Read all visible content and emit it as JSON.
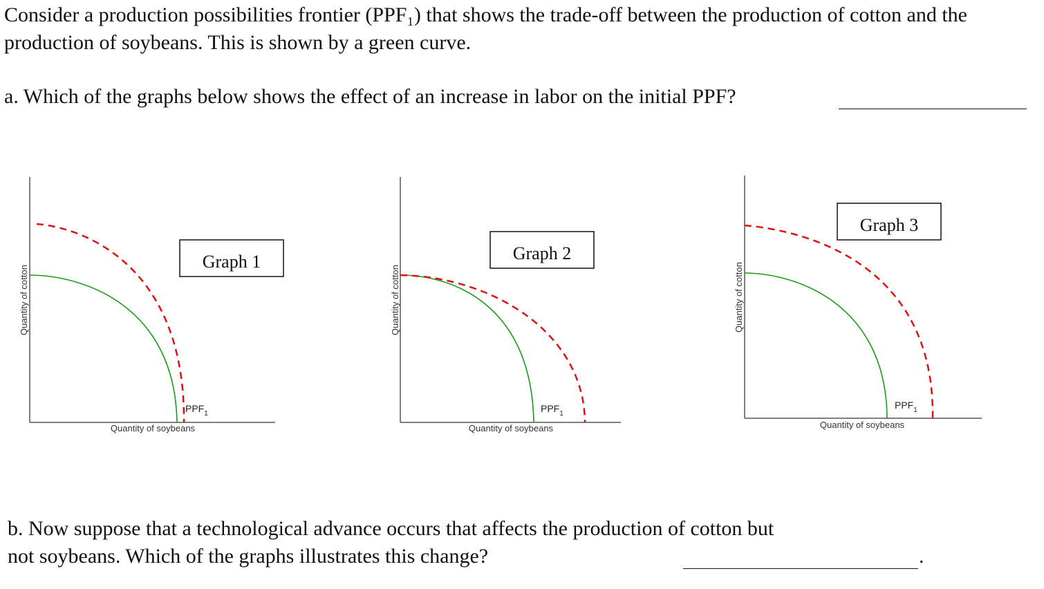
{
  "intro_text": "Consider a production possibilities frontier (PPF₁) that shows the trade-off between the production of cotton and the production of soybeans. This is shown by a green curve.",
  "question_a": "a. Which of the graphs below shows the effect of an increase in labor on the initial PPF?",
  "question_b": "b. Now suppose that a technological advance occurs that affects the production of cotton but not soybeans. Which of the graphs illustrates this change?",
  "question_b_end": ".",
  "colors": {
    "initial_ppf": "#1a9a1a",
    "shifted_ppf": "#e01010",
    "axis": "#555555"
  },
  "graphs": [
    {
      "title": "Graph 1",
      "y_axis_label": "Quantity of cotton",
      "x_axis_label": "Quantity of soybeans",
      "curve_label": "PPF",
      "curve_label_sub": "1"
    },
    {
      "title": "Graph 2",
      "y_axis_label": "Quantity of cotton",
      "x_axis_label": "Quantity of soybeans",
      "curve_label": "PPF",
      "curve_label_sub": "1"
    },
    {
      "title": "Graph 3",
      "y_axis_label": "Quantity of cotton",
      "x_axis_label": "Quantity of soybeans",
      "curve_label": "PPF",
      "curve_label_sub": "1"
    }
  ]
}
